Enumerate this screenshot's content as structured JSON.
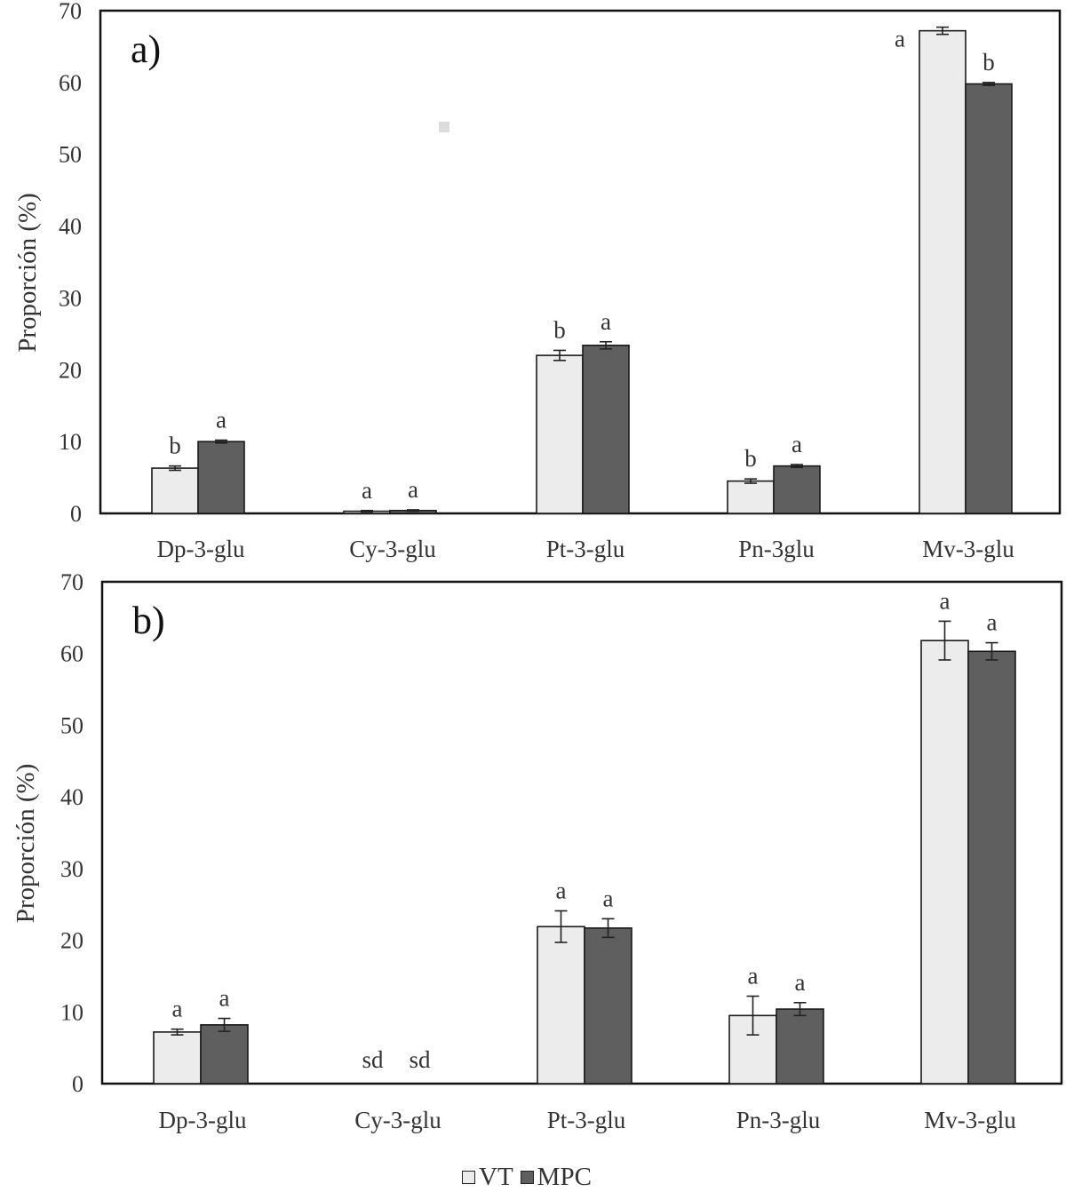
{
  "colors": {
    "VT": "#ececec",
    "MPC": "#5f5f5f",
    "stroke": "#1a1a1a"
  },
  "legend": {
    "items": [
      {
        "key": "VT",
        "label": "VT"
      },
      {
        "key": "MPC",
        "label": "MPC"
      }
    ]
  },
  "chart_data": [
    {
      "type": "bar",
      "panel_label": "a)",
      "ylabel": "Proporción (%)",
      "ylim": [
        0,
        70
      ],
      "yticks": [
        0,
        10,
        20,
        30,
        40,
        50,
        60,
        70
      ],
      "categories": [
        "Dp-3-glu",
        "Cy-3-glu",
        "Pt-3-glu",
        "Pn-3glu",
        "Mv-3-glu"
      ],
      "series": [
        {
          "name": "VT",
          "values": [
            6.3,
            0.3,
            22.0,
            4.5,
            67.2
          ],
          "errors": [
            0.3,
            0.1,
            0.7,
            0.3,
            0.5
          ],
          "labels": [
            "b",
            "a",
            "b",
            "b",
            "a"
          ]
        },
        {
          "name": "MPC",
          "values": [
            10.0,
            0.4,
            23.4,
            6.6,
            59.8
          ],
          "errors": [
            0.2,
            0.1,
            0.5,
            0.2,
            0.2
          ],
          "labels": [
            "a",
            "a",
            "a",
            "a",
            "b"
          ]
        }
      ]
    },
    {
      "type": "bar",
      "panel_label": "b)",
      "ylabel": "Proporción (%)",
      "ylim": [
        0,
        70
      ],
      "yticks": [
        0,
        10,
        20,
        30,
        40,
        50,
        60,
        70
      ],
      "categories": [
        "Dp-3-glu",
        "Cy-3-glu",
        "Pt-3-glu",
        "Pn-3-glu",
        "Mv-3-glu"
      ],
      "series": [
        {
          "name": "VT",
          "values": [
            7.2,
            null,
            21.9,
            9.5,
            61.8
          ],
          "errors": [
            0.4,
            null,
            2.2,
            2.7,
            2.7
          ],
          "labels": [
            "a",
            "sd",
            "a",
            "a",
            "a"
          ]
        },
        {
          "name": "MPC",
          "values": [
            8.2,
            null,
            21.7,
            10.4,
            60.3
          ],
          "errors": [
            0.9,
            null,
            1.3,
            0.9,
            1.2
          ],
          "labels": [
            "a",
            "sd",
            "a",
            "a",
            "a"
          ]
        }
      ]
    }
  ]
}
